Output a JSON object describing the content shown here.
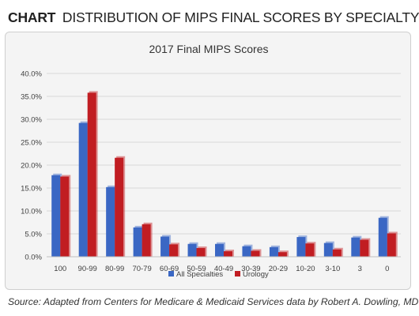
{
  "header": {
    "kicker": "CHART",
    "title": "DISTRIBUTION OF MIPS FINAL SCORES BY SPECIALTY"
  },
  "source": "Source: Adapted from Centers for Medicare & Medicaid Services data by Robert A. Dowling, MD",
  "colors": {
    "all_specialties": "#3a67c4",
    "urology": "#c11d22",
    "grid": "#d9d9d9",
    "axis_text": "#404040"
  },
  "chart_data": {
    "type": "bar",
    "title": "2017 Final MIPS Scores",
    "xlabel": "",
    "ylabel": "",
    "ylim": [
      0,
      0.4
    ],
    "yticks": [
      0,
      0.05,
      0.1,
      0.15,
      0.2,
      0.25,
      0.3,
      0.35,
      0.4
    ],
    "ytick_labels": [
      "0.0%",
      "5.0%",
      "10.0%",
      "15.0%",
      "20.0%",
      "25.0%",
      "30.0%",
      "35.0%",
      "40.0%"
    ],
    "grid": true,
    "legend_position": "bottom",
    "categories": [
      "100",
      "90-99",
      "80-99",
      "70-79",
      "60-69",
      "50-59",
      "40-49",
      "30-39",
      "20-29",
      "10-20",
      "3-10",
      "3",
      "0"
    ],
    "series": [
      {
        "name": "All Specialties",
        "values": [
          0.178,
          0.292,
          0.152,
          0.064,
          0.044,
          0.028,
          0.028,
          0.023,
          0.021,
          0.043,
          0.03,
          0.042,
          0.085
        ]
      },
      {
        "name": "Urology",
        "values": [
          0.175,
          0.358,
          0.216,
          0.071,
          0.027,
          0.019,
          0.012,
          0.013,
          0.01,
          0.029,
          0.016,
          0.037,
          0.051
        ]
      }
    ]
  }
}
